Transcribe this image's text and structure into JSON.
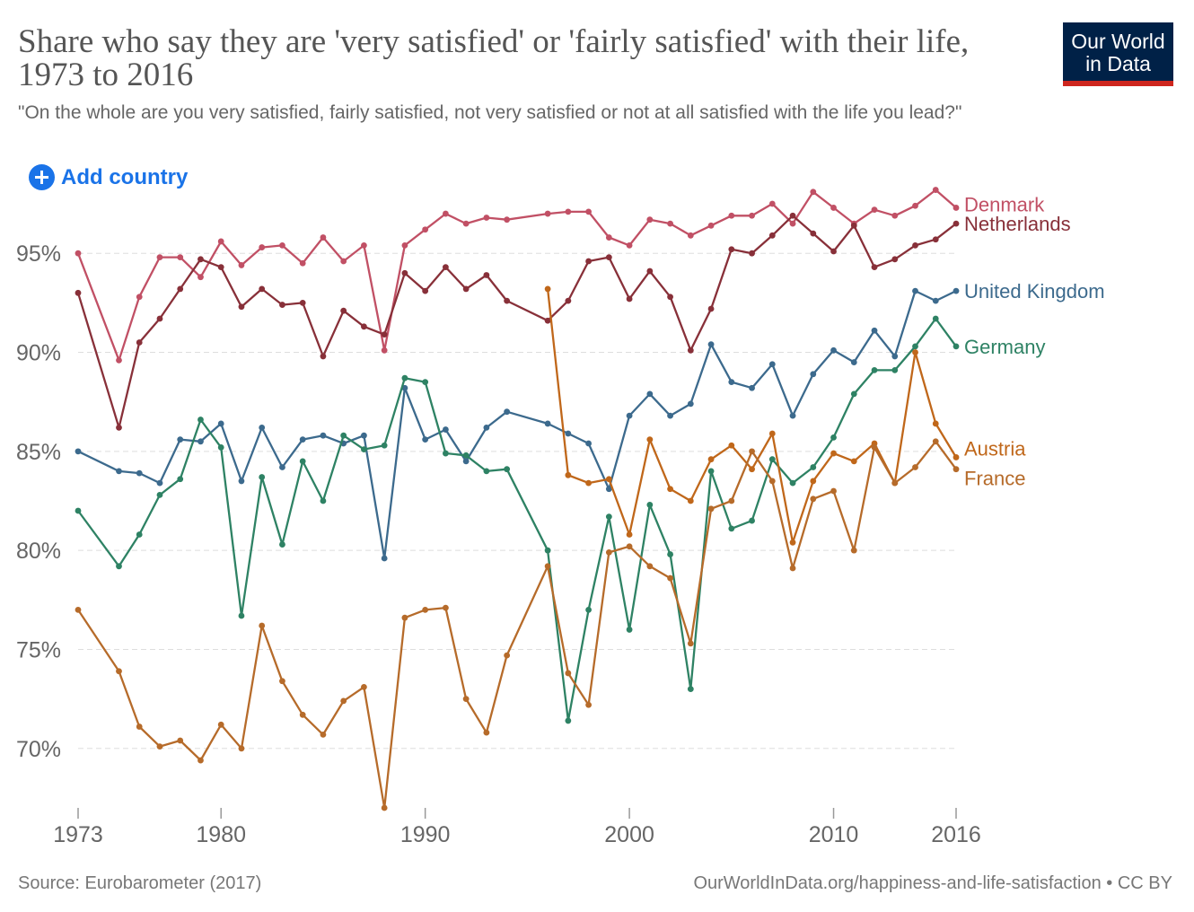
{
  "header": {
    "title": "Share who say they are 'very satisfied' or 'fairly satisfied' with their life, 1973 to 2016",
    "subtitle": "\"On the whole are you very satisfied, fairly satisfied, not very satisfied or not at all satisfied with the life you lead?\""
  },
  "logo": {
    "line1": "Our World",
    "line2": "in Data"
  },
  "controls": {
    "add_country_label": "Add country",
    "add_icon": "plus-circle-icon"
  },
  "footer": {
    "source": "Source: Eurobarometer (2017)",
    "credit": "OurWorldInData.org/happiness-and-life-satisfaction • CC BY"
  },
  "chart_data": {
    "type": "line",
    "ylim": [
      67,
      98
    ],
    "xlim": [
      1973,
      2016
    ],
    "y_ticks": [
      70,
      75,
      80,
      85,
      90,
      95
    ],
    "y_tick_labels": [
      "70%",
      "75%",
      "80%",
      "85%",
      "90%",
      "95%"
    ],
    "x_ticks": [
      1973,
      1980,
      1990,
      2000,
      2010,
      2016
    ],
    "x_tick_labels": [
      "1973",
      "1980",
      "1990",
      "2000",
      "2010",
      "2016"
    ],
    "grid": "horizontal dashed",
    "legend": "right, labels at series ends",
    "series": [
      {
        "name": "Denmark",
        "color": "#c15065",
        "points": [
          [
            1973,
            95.0
          ],
          [
            1975,
            89.6
          ],
          [
            1976,
            92.8
          ],
          [
            1977,
            94.8
          ],
          [
            1978,
            94.8
          ],
          [
            1979,
            93.8
          ],
          [
            1980,
            95.6
          ],
          [
            1981,
            94.4
          ],
          [
            1982,
            95.3
          ],
          [
            1983,
            95.4
          ],
          [
            1984,
            94.5
          ],
          [
            1985,
            95.8
          ],
          [
            1986,
            94.6
          ],
          [
            1987,
            95.4
          ],
          [
            1988,
            90.1
          ],
          [
            1989,
            95.4
          ],
          [
            1990,
            96.2
          ],
          [
            1991,
            97.0
          ],
          [
            1992,
            96.5
          ],
          [
            1993,
            96.8
          ],
          [
            1994,
            96.7
          ],
          [
            1996,
            97.0
          ],
          [
            1997,
            97.1
          ],
          [
            1998,
            97.1
          ],
          [
            1999,
            95.8
          ],
          [
            2000,
            95.4
          ],
          [
            2001,
            96.7
          ],
          [
            2002,
            96.5
          ],
          [
            2003,
            95.9
          ],
          [
            2004,
            96.4
          ],
          [
            2005,
            96.9
          ],
          [
            2006,
            96.9
          ],
          [
            2007,
            97.5
          ],
          [
            2008,
            96.5
          ],
          [
            2009,
            98.1
          ],
          [
            2010,
            97.3
          ],
          [
            2011,
            96.5
          ],
          [
            2012,
            97.2
          ],
          [
            2013,
            96.9
          ],
          [
            2014,
            97.4
          ],
          [
            2015,
            98.2
          ],
          [
            2016,
            97.3
          ]
        ]
      },
      {
        "name": "Netherlands",
        "color": "#883039",
        "points": [
          [
            1973,
            93.0
          ],
          [
            1975,
            86.2
          ],
          [
            1976,
            90.5
          ],
          [
            1977,
            91.7
          ],
          [
            1978,
            93.2
          ],
          [
            1979,
            94.7
          ],
          [
            1980,
            94.3
          ],
          [
            1981,
            92.3
          ],
          [
            1982,
            93.2
          ],
          [
            1983,
            92.4
          ],
          [
            1984,
            92.5
          ],
          [
            1985,
            89.8
          ],
          [
            1986,
            92.1
          ],
          [
            1987,
            91.3
          ],
          [
            1988,
            90.9
          ],
          [
            1989,
            94.0
          ],
          [
            1990,
            93.1
          ],
          [
            1991,
            94.3
          ],
          [
            1992,
            93.2
          ],
          [
            1993,
            93.9
          ],
          [
            1994,
            92.6
          ],
          [
            1996,
            91.6
          ],
          [
            1997,
            92.6
          ],
          [
            1998,
            94.6
          ],
          [
            1999,
            94.8
          ],
          [
            2000,
            92.7
          ],
          [
            2001,
            94.1
          ],
          [
            2002,
            92.8
          ],
          [
            2003,
            90.1
          ],
          [
            2004,
            92.2
          ],
          [
            2005,
            95.2
          ],
          [
            2006,
            95.0
          ],
          [
            2007,
            95.9
          ],
          [
            2008,
            96.9
          ],
          [
            2009,
            96.0
          ],
          [
            2010,
            95.1
          ],
          [
            2011,
            96.4
          ],
          [
            2012,
            94.3
          ],
          [
            2013,
            94.7
          ],
          [
            2014,
            95.4
          ],
          [
            2015,
            95.7
          ],
          [
            2016,
            96.5
          ]
        ]
      },
      {
        "name": "United Kingdom",
        "color": "#3c6a8d",
        "points": [
          [
            1973,
            85.0
          ],
          [
            1975,
            84.0
          ],
          [
            1976,
            83.9
          ],
          [
            1977,
            83.4
          ],
          [
            1978,
            85.6
          ],
          [
            1979,
            85.5
          ],
          [
            1980,
            86.4
          ],
          [
            1981,
            83.5
          ],
          [
            1982,
            86.2
          ],
          [
            1983,
            84.2
          ],
          [
            1984,
            85.6
          ],
          [
            1985,
            85.8
          ],
          [
            1986,
            85.4
          ],
          [
            1987,
            85.8
          ],
          [
            1988,
            79.6
          ],
          [
            1989,
            88.2
          ],
          [
            1990,
            85.6
          ],
          [
            1991,
            86.1
          ],
          [
            1992,
            84.5
          ],
          [
            1993,
            86.2
          ],
          [
            1994,
            87.0
          ],
          [
            1996,
            86.4
          ],
          [
            1997,
            85.9
          ],
          [
            1998,
            85.4
          ],
          [
            1999,
            83.1
          ],
          [
            2000,
            86.8
          ],
          [
            2001,
            87.9
          ],
          [
            2002,
            86.8
          ],
          [
            2003,
            87.4
          ],
          [
            2004,
            90.4
          ],
          [
            2005,
            88.5
          ],
          [
            2006,
            88.2
          ],
          [
            2007,
            89.4
          ],
          [
            2008,
            86.8
          ],
          [
            2009,
            88.9
          ],
          [
            2010,
            90.1
          ],
          [
            2011,
            89.5
          ],
          [
            2012,
            91.1
          ],
          [
            2013,
            89.8
          ],
          [
            2014,
            93.1
          ],
          [
            2015,
            92.6
          ],
          [
            2016,
            93.1
          ]
        ]
      },
      {
        "name": "Germany",
        "color": "#2e8264",
        "points": [
          [
            1973,
            82.0
          ],
          [
            1975,
            79.2
          ],
          [
            1976,
            80.8
          ],
          [
            1977,
            82.8
          ],
          [
            1978,
            83.6
          ],
          [
            1979,
            86.6
          ],
          [
            1980,
            85.2
          ],
          [
            1981,
            76.7
          ],
          [
            1982,
            83.7
          ],
          [
            1983,
            80.3
          ],
          [
            1984,
            84.5
          ],
          [
            1985,
            82.5
          ],
          [
            1986,
            85.8
          ],
          [
            1987,
            85.1
          ],
          [
            1988,
            85.3
          ],
          [
            1989,
            88.7
          ],
          [
            1990,
            88.5
          ],
          [
            1991,
            84.9
          ],
          [
            1992,
            84.8
          ],
          [
            1993,
            84.0
          ],
          [
            1994,
            84.1
          ],
          [
            1996,
            80.0
          ],
          [
            1997,
            71.4
          ],
          [
            1998,
            77.0
          ],
          [
            1999,
            81.7
          ],
          [
            2000,
            76.0
          ],
          [
            2001,
            82.3
          ],
          [
            2002,
            79.8
          ],
          [
            2003,
            73.0
          ],
          [
            2004,
            84.0
          ],
          [
            2005,
            81.1
          ],
          [
            2006,
            81.5
          ],
          [
            2007,
            84.6
          ],
          [
            2008,
            83.4
          ],
          [
            2009,
            84.2
          ],
          [
            2010,
            85.7
          ],
          [
            2011,
            87.9
          ],
          [
            2012,
            89.1
          ],
          [
            2013,
            89.1
          ],
          [
            2014,
            90.3
          ],
          [
            2015,
            91.7
          ],
          [
            2016,
            90.3
          ]
        ]
      },
      {
        "name": "Austria",
        "color": "#c0671a",
        "points": [
          [
            1996,
            93.2
          ],
          [
            1997,
            83.8
          ],
          [
            1998,
            83.4
          ],
          [
            1999,
            83.6
          ],
          [
            2000,
            80.8
          ],
          [
            2001,
            85.6
          ],
          [
            2002,
            83.1
          ],
          [
            2003,
            82.5
          ],
          [
            2004,
            84.6
          ],
          [
            2005,
            85.3
          ],
          [
            2006,
            84.1
          ],
          [
            2007,
            85.9
          ],
          [
            2008,
            80.4
          ],
          [
            2009,
            83.5
          ],
          [
            2010,
            84.9
          ],
          [
            2011,
            84.5
          ],
          [
            2012,
            85.4
          ],
          [
            2013,
            83.4
          ],
          [
            2014,
            90.0
          ],
          [
            2015,
            86.4
          ],
          [
            2016,
            84.7
          ]
        ]
      },
      {
        "name": "France",
        "color": "#b66b2a",
        "points": [
          [
            1973,
            77.0
          ],
          [
            1975,
            73.9
          ],
          [
            1976,
            71.1
          ],
          [
            1977,
            70.1
          ],
          [
            1978,
            70.4
          ],
          [
            1979,
            69.4
          ],
          [
            1980,
            71.2
          ],
          [
            1981,
            70.0
          ],
          [
            1982,
            76.2
          ],
          [
            1983,
            73.4
          ],
          [
            1984,
            71.7
          ],
          [
            1985,
            70.7
          ],
          [
            1986,
            72.4
          ],
          [
            1987,
            73.1
          ],
          [
            1988,
            67.0
          ],
          [
            1989,
            76.6
          ],
          [
            1990,
            77.0
          ],
          [
            1991,
            77.1
          ],
          [
            1992,
            72.5
          ],
          [
            1993,
            70.8
          ],
          [
            1994,
            74.7
          ],
          [
            1996,
            79.2
          ],
          [
            1997,
            73.8
          ],
          [
            1998,
            72.2
          ],
          [
            1999,
            79.9
          ],
          [
            2000,
            80.2
          ],
          [
            2001,
            79.2
          ],
          [
            2002,
            78.6
          ],
          [
            2003,
            75.3
          ],
          [
            2004,
            82.1
          ],
          [
            2005,
            82.5
          ],
          [
            2006,
            85.0
          ],
          [
            2007,
            83.5
          ],
          [
            2008,
            79.1
          ],
          [
            2009,
            82.6
          ],
          [
            2010,
            83.0
          ],
          [
            2011,
            80.0
          ],
          [
            2012,
            85.2
          ],
          [
            2013,
            83.4
          ],
          [
            2014,
            84.2
          ],
          [
            2015,
            85.5
          ],
          [
            2016,
            84.1
          ]
        ]
      }
    ]
  }
}
